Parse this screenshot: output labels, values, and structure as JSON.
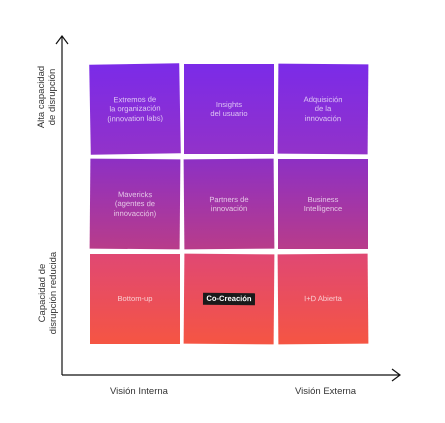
{
  "axes": {
    "y_top_label": "Alta capacidad\nde disrupción",
    "y_bottom_label": "Capacidad de\ndisrupción reducida",
    "x_left_label": "Visión Interna",
    "x_right_label": "Visión Externa"
  },
  "grid": {
    "rows": [
      [
        {
          "text": "Extremos de\nla organización\n(innovation labs)"
        },
        {
          "text": "Insights\ndel usuario"
        },
        {
          "text": "Adquisición\nde la\ninnovación"
        }
      ],
      [
        {
          "text": "Mavericks\n(agentes de\ninnovacción)"
        },
        {
          "text": "Partners de\ninnovación"
        },
        {
          "text": "Business\nIntelligence"
        }
      ],
      [
        {
          "text": "Bottom-up"
        },
        {
          "text": "Co-Creación",
          "highlight": true
        },
        {
          "text": "I+D Abierta"
        }
      ]
    ]
  }
}
